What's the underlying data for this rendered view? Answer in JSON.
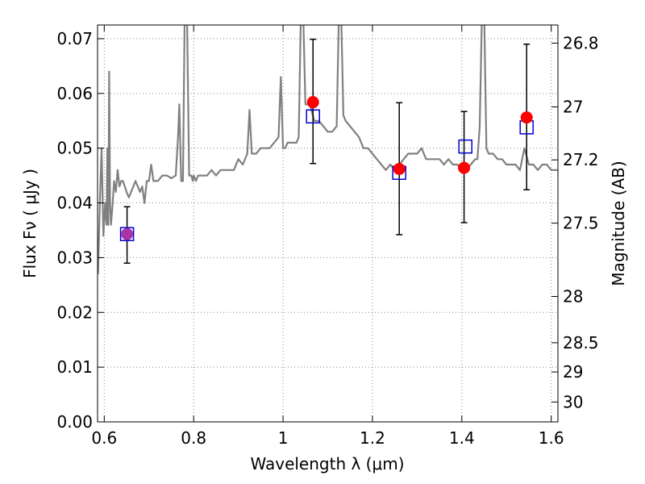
{
  "chart_data": {
    "type": "scatter",
    "title": "",
    "xlabel": "Wavelength  λ (μm)",
    "ylabel": "Flux  Fν  ( μJy )",
    "y2label": "Magnitude (AB)",
    "xlim": [
      0.585,
      1.615
    ],
    "ylim": [
      0.0,
      0.0725
    ],
    "grid": true,
    "xticks": [
      0.6,
      0.8,
      1.0,
      1.2,
      1.4,
      1.6
    ],
    "xtick_labels": [
      "0.6",
      "0.8",
      "1",
      "1.2",
      "1.4",
      "1.6"
    ],
    "yticks": [
      0.0,
      0.01,
      0.02,
      0.03,
      0.04,
      0.05,
      0.06,
      0.07
    ],
    "ytick_labels": [
      "0.00",
      "0.01",
      "0.02",
      "0.03",
      "0.04",
      "0.05",
      "0.06",
      "0.07"
    ],
    "y2ticks": [
      26.8,
      27.0,
      27.2,
      27.5,
      28.0,
      28.5,
      29.0,
      30.0
    ],
    "y2tick_labels": [
      "26.8",
      "27",
      "27.2",
      "27.5",
      "28",
      "28.5",
      "29",
      "30"
    ],
    "colors": {
      "spectrum": "#808080",
      "observed": "#ff0000",
      "model": "#0000cc",
      "errorbar": "#000000",
      "grid": "#888888",
      "overlap": "#aa33aa"
    },
    "spectrum": {
      "name": "",
      "x": [
        0.586,
        0.59,
        0.594,
        0.598,
        0.602,
        0.605,
        0.607,
        0.609,
        0.611,
        0.613,
        0.615,
        0.618,
        0.622,
        0.626,
        0.63,
        0.634,
        0.638,
        0.642,
        0.646,
        0.65,
        0.655,
        0.66,
        0.665,
        0.67,
        0.675,
        0.68,
        0.685,
        0.69,
        0.695,
        0.7,
        0.705,
        0.71,
        0.72,
        0.73,
        0.74,
        0.75,
        0.76,
        0.765,
        0.768,
        0.772,
        0.776,
        0.78,
        0.785,
        0.79,
        0.792,
        0.795,
        0.798,
        0.8,
        0.805,
        0.81,
        0.82,
        0.83,
        0.84,
        0.85,
        0.86,
        0.87,
        0.88,
        0.89,
        0.9,
        0.91,
        0.92,
        0.925,
        0.93,
        0.935,
        0.94,
        0.95,
        0.96,
        0.97,
        0.98,
        0.99,
        0.995,
        1.0,
        1.005,
        1.01,
        1.02,
        1.03,
        1.035,
        1.04,
        1.045,
        1.05,
        1.06,
        1.07,
        1.08,
        1.09,
        1.1,
        1.11,
        1.12,
        1.125,
        1.13,
        1.135,
        1.14,
        1.15,
        1.16,
        1.17,
        1.18,
        1.19,
        1.2,
        1.21,
        1.22,
        1.23,
        1.24,
        1.25,
        1.26,
        1.27,
        1.28,
        1.29,
        1.3,
        1.31,
        1.32,
        1.33,
        1.34,
        1.35,
        1.36,
        1.37,
        1.38,
        1.39,
        1.4,
        1.41,
        1.42,
        1.43,
        1.435,
        1.44,
        1.445,
        1.45,
        1.455,
        1.46,
        1.47,
        1.48,
        1.49,
        1.5,
        1.51,
        1.52,
        1.53,
        1.54,
        1.55,
        1.56,
        1.57,
        1.58,
        1.59,
        1.6,
        1.61,
        1.615
      ],
      "y": [
        0.027,
        0.04,
        0.05,
        0.034,
        0.04,
        0.036,
        0.05,
        0.036,
        0.064,
        0.04,
        0.036,
        0.039,
        0.044,
        0.042,
        0.046,
        0.043,
        0.044,
        0.044,
        0.043,
        0.042,
        0.041,
        0.042,
        0.043,
        0.044,
        0.043,
        0.042,
        0.043,
        0.04,
        0.044,
        0.044,
        0.047,
        0.044,
        0.044,
        0.045,
        0.045,
        0.0445,
        0.045,
        0.052,
        0.058,
        0.044,
        0.044,
        0.075,
        0.075,
        0.045,
        0.045,
        0.045,
        0.044,
        0.045,
        0.044,
        0.045,
        0.045,
        0.045,
        0.046,
        0.045,
        0.046,
        0.046,
        0.046,
        0.046,
        0.048,
        0.047,
        0.049,
        0.057,
        0.049,
        0.049,
        0.049,
        0.05,
        0.05,
        0.05,
        0.051,
        0.052,
        0.063,
        0.05,
        0.05,
        0.051,
        0.051,
        0.051,
        0.052,
        0.075,
        0.075,
        0.058,
        0.058,
        0.055,
        0.055,
        0.054,
        0.053,
        0.053,
        0.054,
        0.075,
        0.075,
        0.056,
        0.055,
        0.054,
        0.053,
        0.052,
        0.05,
        0.05,
        0.049,
        0.048,
        0.047,
        0.046,
        0.047,
        0.046,
        0.047,
        0.048,
        0.049,
        0.049,
        0.049,
        0.05,
        0.048,
        0.048,
        0.048,
        0.048,
        0.047,
        0.048,
        0.047,
        0.047,
        0.046,
        0.046,
        0.047,
        0.048,
        0.048,
        0.054,
        0.075,
        0.075,
        0.05,
        0.049,
        0.049,
        0.048,
        0.048,
        0.047,
        0.047,
        0.047,
        0.046,
        0.05,
        0.047,
        0.047,
        0.046,
        0.047,
        0.047,
        0.046,
        0.046,
        0.046
      ]
    },
    "observed": {
      "name": "",
      "x": [
        0.651,
        1.067,
        1.26,
        1.405,
        1.545
      ],
      "y": [
        0.0343,
        0.0584,
        0.0462,
        0.0464,
        0.0556
      ],
      "yerr_low": [
        0.0053,
        0.0112,
        0.012,
        0.01,
        0.0132
      ],
      "yerr_high": [
        0.005,
        0.0115,
        0.0121,
        0.0103,
        0.0134
      ]
    },
    "model": {
      "name": "",
      "x": [
        0.651,
        1.067,
        1.26,
        1.408,
        1.545
      ],
      "y": [
        0.0343,
        0.0558,
        0.0455,
        0.0503,
        0.0538
      ]
    }
  }
}
